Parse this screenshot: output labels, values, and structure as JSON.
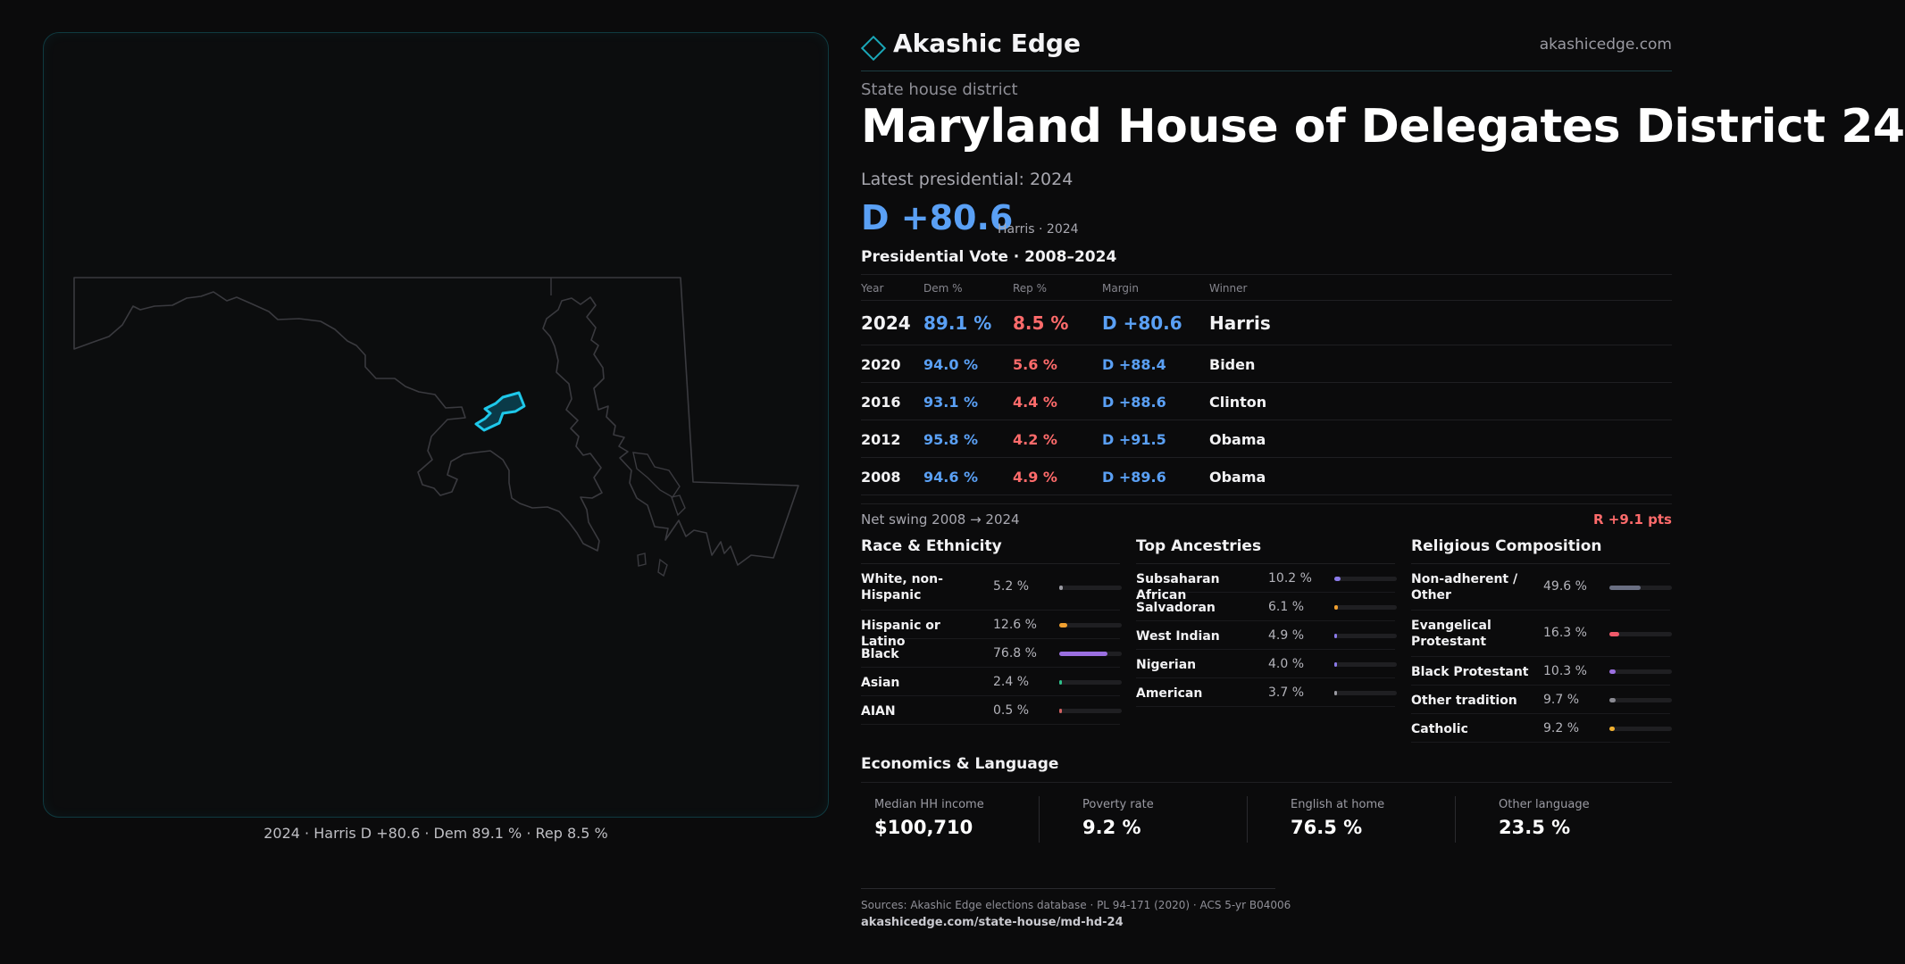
{
  "map": {
    "caption": "2024 · Harris D +80.6 · Dem 89.1 % · Rep 8.5 %",
    "outline_color": "#3a3a3f",
    "district_color": "#1ec8ea"
  },
  "brand": {
    "name": "Akashic Edge",
    "url": "akashicedge.com",
    "icon": "diamond-icon"
  },
  "header": {
    "kicker": "State house district",
    "title": "Maryland House of Delegates District 24",
    "latest_presidential": "Latest presidential: 2024",
    "margin": "D +80.6",
    "margin_sub": "Harris · 2024"
  },
  "vote_table": {
    "title": "Presidential Vote · 2008–2024",
    "columns": [
      "Year",
      "Dem %",
      "Rep %",
      "Margin",
      "Winner"
    ],
    "rows": [
      {
        "year": "2024",
        "dem": "89.1 %",
        "rep": "8.5 %",
        "margin": "D +80.6",
        "winner": "Harris"
      },
      {
        "year": "2020",
        "dem": "94.0 %",
        "rep": "5.6 %",
        "margin": "D +88.4",
        "winner": "Biden"
      },
      {
        "year": "2016",
        "dem": "93.1 %",
        "rep": "4.4 %",
        "margin": "D +88.6",
        "winner": "Clinton"
      },
      {
        "year": "2012",
        "dem": "95.8 %",
        "rep": "4.2 %",
        "margin": "D +91.5",
        "winner": "Obama"
      },
      {
        "year": "2008",
        "dem": "94.6 %",
        "rep": "4.9 %",
        "margin": "D +89.6",
        "winner": "Obama"
      }
    ],
    "swing_label": "Net swing 2008 → 2024",
    "swing_value": "R +9.1 pts"
  },
  "race": {
    "title": "Race & Ethnicity",
    "items": [
      {
        "label": "White, non-Hispanic",
        "value": "5.2 %",
        "fraction": 0.052,
        "color": "#9a9aa2"
      },
      {
        "label": "Hispanic or Latino",
        "value": "12.6 %",
        "fraction": 0.126,
        "color": "#f0a030"
      },
      {
        "label": "Black",
        "value": "76.8 %",
        "fraction": 0.768,
        "color": "#9b6fe0"
      },
      {
        "label": "Asian",
        "value": "2.4 %",
        "fraction": 0.024,
        "color": "#2ec08a"
      },
      {
        "label": "AIAN",
        "value": "0.5 %",
        "fraction": 0.005,
        "color": "#d06060"
      }
    ]
  },
  "ancestry": {
    "title": "Top Ancestries",
    "items": [
      {
        "label": "Subsaharan African",
        "value": "10.2 %",
        "fraction": 0.102,
        "color": "#8a7ae8"
      },
      {
        "label": "Salvadoran",
        "value": "6.1 %",
        "fraction": 0.061,
        "color": "#f0a030"
      },
      {
        "label": "West Indian",
        "value": "4.9 %",
        "fraction": 0.049,
        "color": "#8a7ae8"
      },
      {
        "label": "Nigerian",
        "value": "4.0 %",
        "fraction": 0.04,
        "color": "#8a7ae8"
      },
      {
        "label": "American",
        "value": "3.7 %",
        "fraction": 0.037,
        "color": "#9a9aa2"
      }
    ]
  },
  "religion": {
    "title": "Religious Composition",
    "items": [
      {
        "label": "Non-adherent / Other",
        "value": "49.6 %",
        "fraction": 0.496,
        "color": "#6a6f82"
      },
      {
        "label": "Evangelical Protestant",
        "value": "16.3 %",
        "fraction": 0.163,
        "color": "#f05a6a"
      },
      {
        "label": "Black Protestant",
        "value": "10.3 %",
        "fraction": 0.103,
        "color": "#9b6fe0"
      },
      {
        "label": "Other tradition",
        "value": "9.7 %",
        "fraction": 0.097,
        "color": "#8a8a92"
      },
      {
        "label": "Catholic",
        "value": "9.2 %",
        "fraction": 0.092,
        "color": "#f0b030"
      }
    ]
  },
  "economics": {
    "title": "Economics & Language",
    "items": [
      {
        "label": "Median HH income",
        "value": "$100,710"
      },
      {
        "label": "Poverty rate",
        "value": "9.2 %"
      },
      {
        "label": "English at home",
        "value": "76.5 %"
      },
      {
        "label": "Other language",
        "value": "23.5 %"
      }
    ]
  },
  "footer": {
    "sources": "Sources: Akashic Edge elections database · PL 94-171 (2020) · ACS 5-yr B04006",
    "url": "akashicedge.com/state-house/md-hd-24"
  }
}
